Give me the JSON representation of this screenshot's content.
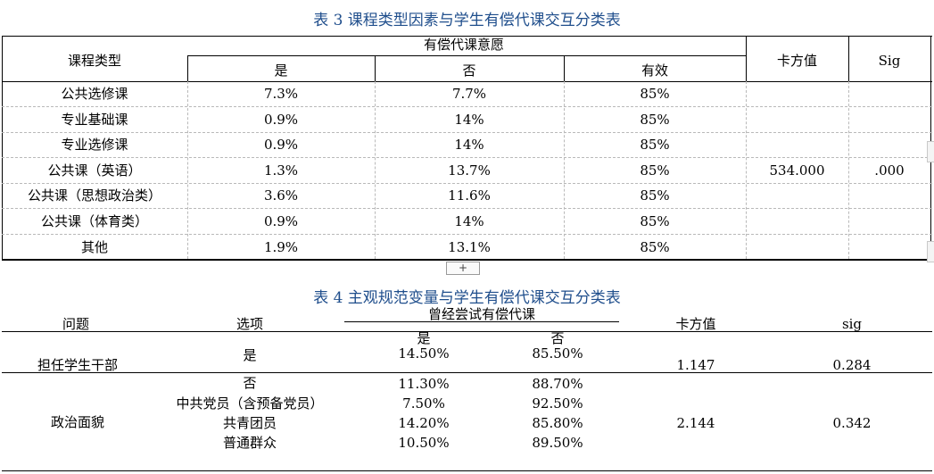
{
  "table3": {
    "caption": "表 3 课程类型因素与学生有偿代课交互分类表",
    "header": {
      "course_type": "课程类型",
      "willingness": "有偿代课意愿",
      "yes": "是",
      "no": "否",
      "valid": "有效",
      "chi_square": "卡方值",
      "sig": "Sig"
    },
    "rows": [
      {
        "type": "公共选修课",
        "yes": "7.3%",
        "no": "7.7%",
        "valid": "85%"
      },
      {
        "type": "专业基础课",
        "yes": "0.9%",
        "no": "14%",
        "valid": "85%"
      },
      {
        "type": "专业选修课",
        "yes": "0.9%",
        "no": "14%",
        "valid": "85%"
      },
      {
        "type": "公共课（英语）",
        "yes": "1.3%",
        "no": "13.7%",
        "valid": "85%"
      },
      {
        "type": "公共课（思想政治类）",
        "yes": "3.6%",
        "no": "11.6%",
        "valid": "85%"
      },
      {
        "type": "公共课（体育类）",
        "yes": "0.9%",
        "no": "14%",
        "valid": "85%"
      },
      {
        "type": "其他",
        "yes": "1.9%",
        "no": "13.1%",
        "valid": "85%"
      }
    ],
    "chi_square_value": "534.000",
    "sig_value": ".000",
    "add_handle": "+"
  },
  "table4": {
    "caption": "表 4 主观规范变量与学生有偿代课交互分类表",
    "header": {
      "question": "问题",
      "option": "选项",
      "tried": "曾经尝试有偿代课",
      "yes": "是",
      "no": "否",
      "chi_square": "卡方值",
      "sig": "sig"
    },
    "cadre": {
      "question": "担任学生干部",
      "chi_square": "1.147",
      "sig": "0.284",
      "rows": [
        {
          "option": "是",
          "yes": "14.50%",
          "no": "85.50%"
        },
        {
          "option": "否",
          "yes": "11.30%",
          "no": "88.70%"
        }
      ]
    },
    "political": {
      "question": "政治面貌",
      "chi_square": "2.144",
      "sig": "0.342",
      "rows": [
        {
          "option": "中共党员（含预备党员）",
          "yes": "7.50%",
          "no": "92.50%"
        },
        {
          "option": "共青团员",
          "yes": "14.20%",
          "no": "85.80%"
        },
        {
          "option": "普通群众",
          "yes": "10.50%",
          "no": "89.50%"
        }
      ]
    }
  },
  "colors": {
    "caption": "#1f4e8c",
    "grid": "#b9b9b9",
    "rule": "#000000"
  }
}
